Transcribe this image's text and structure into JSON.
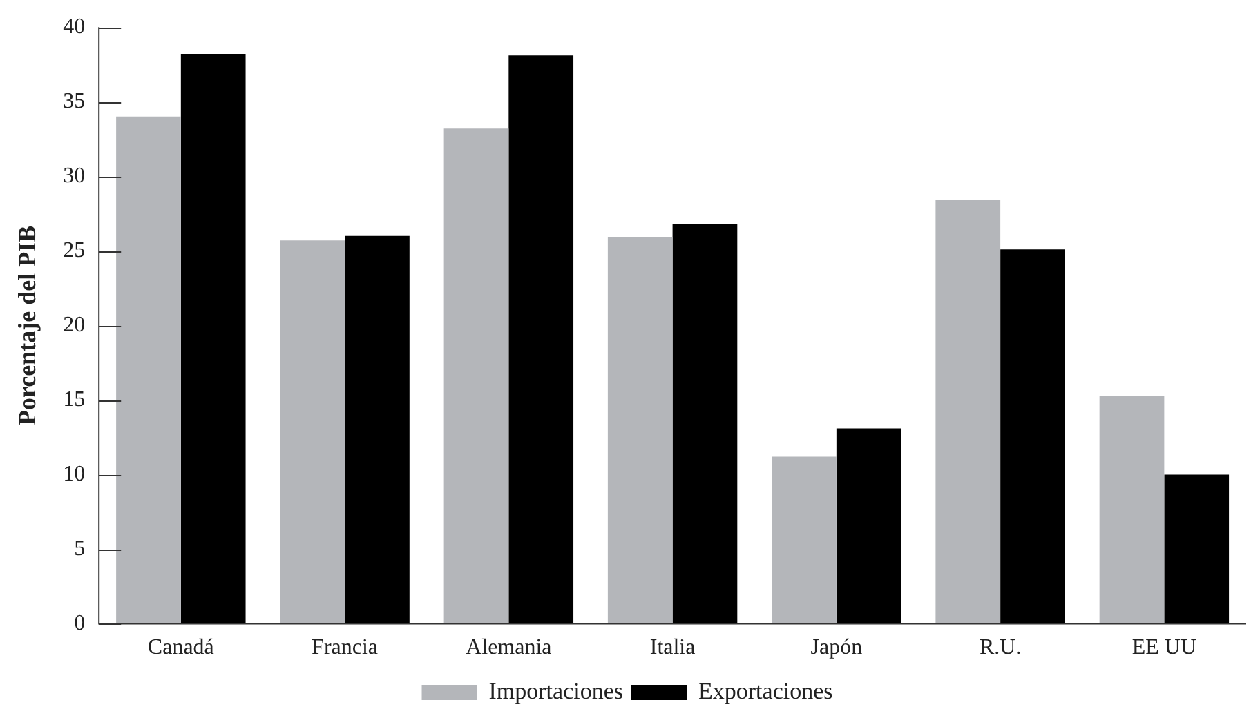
{
  "chart_data": {
    "type": "bar",
    "ylabel": "Porcentaje del PIB",
    "categories": [
      "Canadá",
      "Francia",
      "Alemania",
      "Italia",
      "Japón",
      "R.U.",
      "EE UU"
    ],
    "series": [
      {
        "name": "Importaciones",
        "color": "#b4b6ba",
        "values": [
          34.0,
          25.7,
          33.2,
          25.9,
          11.2,
          28.4,
          15.3
        ]
      },
      {
        "name": "Exportaciones",
        "color": "#000000",
        "values": [
          38.2,
          26.0,
          38.1,
          26.8,
          13.1,
          25.1,
          10.0
        ]
      }
    ],
    "ylim": [
      0,
      40
    ],
    "yticks": [
      0,
      5,
      10,
      15,
      20,
      25,
      30,
      35,
      40
    ],
    "legend": "bottom"
  }
}
